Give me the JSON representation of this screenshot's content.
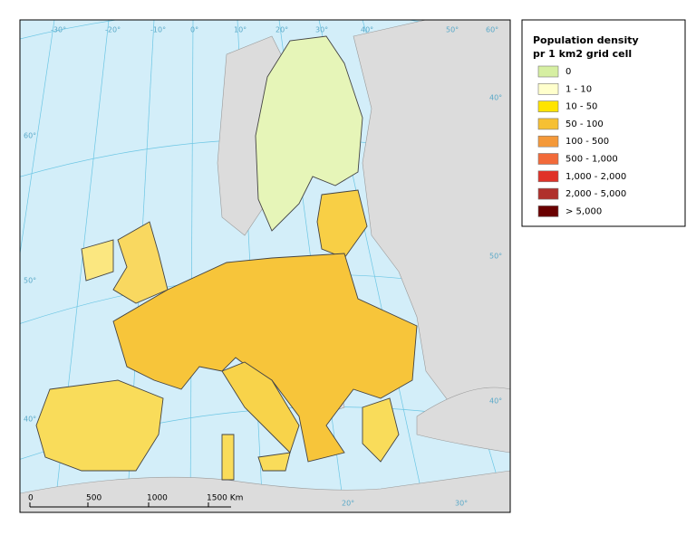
{
  "legend": {
    "title": [
      "Population density",
      "pr 1 km2 grid cell"
    ],
    "items": [
      {
        "label": "0",
        "color": "#d6efa2"
      },
      {
        "label": "1 - 10",
        "color": "#ffffcc"
      },
      {
        "label": "10 - 50",
        "color": "#ffe400"
      },
      {
        "label": "50 - 100",
        "color": "#f6c033"
      },
      {
        "label": "100 - 500",
        "color": "#f4993a"
      },
      {
        "label": "500 - 1,000",
        "color": "#f26a3a"
      },
      {
        "label": "1,000 - 2,000",
        "color": "#e03228"
      },
      {
        "label": "2,000 - 5,000",
        "color": "#b0302b"
      },
      {
        "label": "> 5,000",
        "color": "#6a0000"
      }
    ]
  },
  "scale_bar": [
    "0",
    "500",
    "1000",
    "1500 Km"
  ],
  "graticule": {
    "top": [
      "-30°",
      "-20°",
      "-10°",
      "0°",
      "10°",
      "20°",
      "30°",
      "40°",
      "50°",
      "60°"
    ],
    "left": [
      "60°",
      "50°",
      "40°"
    ],
    "right": [
      "40°",
      "50°",
      "40°"
    ],
    "bottom": [
      "20°",
      "30°"
    ]
  }
}
